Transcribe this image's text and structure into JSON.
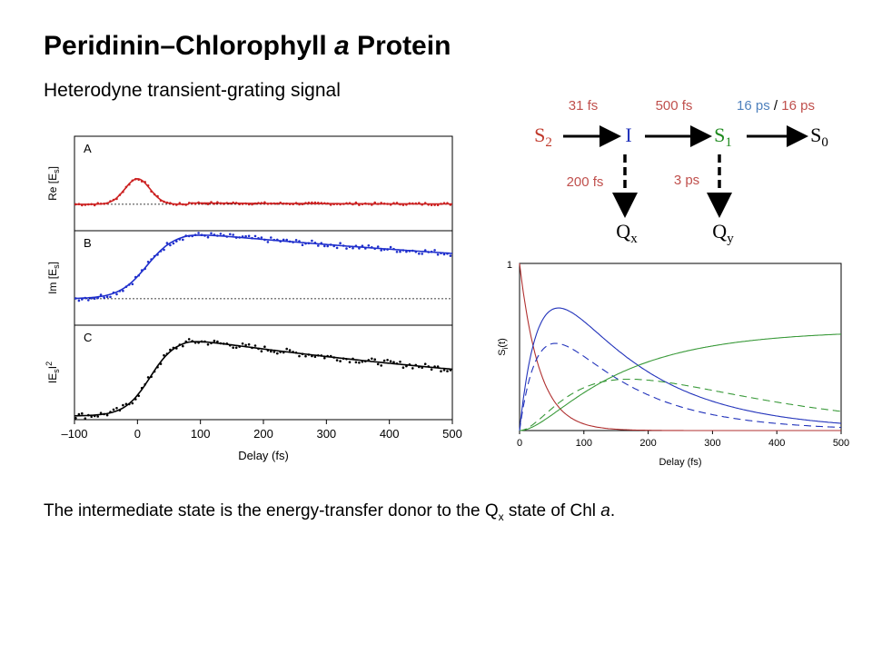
{
  "slide": {
    "title_parts": [
      "Peridinin–Chlorophyll ",
      "a",
      " Protein"
    ],
    "subtitle": "Heterodyne transient-grating signal",
    "footer_parts": [
      "The intermediate state is the energy-transfer donor to the Q",
      "x",
      " state of Chl ",
      "a",
      "."
    ]
  },
  "scheme": {
    "states": [
      {
        "main": "S",
        "sub": "2",
        "color": "#c0392b"
      },
      {
        "main": "I",
        "sub": "",
        "color": "#2233bb"
      },
      {
        "main": "S",
        "sub": "1",
        "color": "#1e8a1e"
      },
      {
        "main": "S",
        "sub": "0",
        "color": "#000000"
      }
    ],
    "rates": [
      {
        "text": "31 fs",
        "color": "#c0504d"
      },
      {
        "text": "500 fs",
        "color": "#c0504d"
      }
    ],
    "last_rate": {
      "a": "16 ps",
      "sep": " / ",
      "b": "16 ps",
      "color_a": "#4f81bd",
      "color_b": "#c0504d"
    },
    "branch_rates": [
      {
        "text": "200 fs",
        "color": "#c0504d"
      },
      {
        "text": "3 ps",
        "color": "#c0504d"
      }
    ],
    "branch_states": [
      {
        "main": "Q",
        "sub": "x"
      },
      {
        "main": "Q",
        "sub": "y"
      }
    ]
  },
  "chart_data": [
    {
      "type": "scatter",
      "panels": [
        {
          "letter": "A",
          "ylabel": "Re [E",
          "ylabel_sub": "s",
          "ylabel_end": "]",
          "color": "#cc2222",
          "fit": "gauss",
          "y0": 0,
          "amp": 1,
          "center": 0,
          "width": 28,
          "tail": 0.05
        },
        {
          "letter": "B",
          "ylabel": "Im [E",
          "ylabel_sub": "s",
          "ylabel_end": "]",
          "color": "#1f2fcc",
          "fit": "rise",
          "y0": 0,
          "amp": 1,
          "center": 15,
          "width": 22,
          "decay": 0.0009
        },
        {
          "letter": "C",
          "ylabel": "IE",
          "ylabel_sub": "s",
          "ylabel_end": "I",
          "ylabel_sup": "2",
          "color": "#000000",
          "fit": "rise",
          "y0": 0,
          "amp": 1,
          "center": 20,
          "width": 20,
          "decay": 0.0012
        }
      ],
      "x_ticks": [
        "–100",
        "0",
        "100",
        "200",
        "300",
        "400",
        "500"
      ],
      "x_tick_values": [
        -100,
        0,
        100,
        200,
        300,
        400,
        500
      ],
      "xlabel": "Delay (fs)",
      "xlim": [
        -100,
        500
      ]
    },
    {
      "type": "line",
      "ylabel": "S",
      "ylabel_sub": "i",
      "ylabel_end": "(t)",
      "y_tick_top": "1",
      "x_ticks": [
        "0",
        "100",
        "200",
        "300",
        "400",
        "500"
      ],
      "x_tick_values": [
        0,
        100,
        200,
        300,
        400,
        500
      ],
      "xlim": [
        0,
        500
      ],
      "ylim": [
        0,
        1
      ],
      "xlabel": "Delay (fs)",
      "series": [
        {
          "kind": "s2",
          "color": "#b03030",
          "dash": false
        },
        {
          "kind": "i_solid",
          "color": "#2233bb",
          "dash": false
        },
        {
          "kind": "i_dash",
          "color": "#2233bb",
          "dash": true
        },
        {
          "kind": "s1_solid",
          "color": "#3a9a3a",
          "dash": false
        },
        {
          "kind": "s1_dash",
          "color": "#3a9a3a",
          "dash": true
        }
      ]
    }
  ]
}
